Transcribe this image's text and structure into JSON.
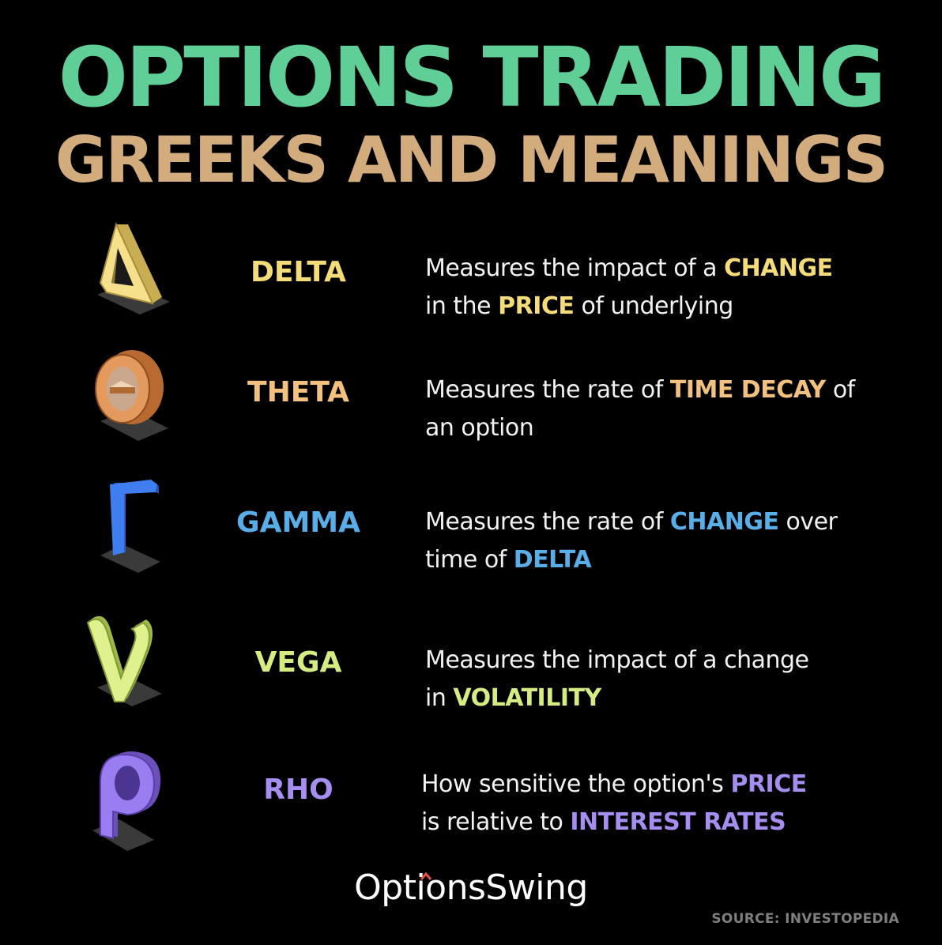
{
  "title": {
    "line1": "OPTIONS TRADING",
    "line2": "GREEKS AND MEANINGS",
    "line1_color": "#5fcf97",
    "line2_color": "#d3ac7d"
  },
  "greeks": [
    {
      "name": "DELTA",
      "color": "#f5dc7a",
      "icon": "delta-icon",
      "line1": [
        {
          "t": "Measures the impact of a "
        },
        {
          "t": "CHANGE",
          "hl": true
        }
      ],
      "line2": [
        {
          "t": "in the "
        },
        {
          "t": "PRICE",
          "hl": true
        },
        {
          "t": " of underlying"
        }
      ]
    },
    {
      "name": "THETA",
      "color": "#f2c07f",
      "icon": "theta-icon",
      "line1": [
        {
          "t": "Measures the rate of "
        },
        {
          "t": "TIME DECAY",
          "hl": true
        },
        {
          "t": " of"
        }
      ],
      "line2": [
        {
          "t": "an option"
        }
      ]
    },
    {
      "name": "GAMMA",
      "color": "#5aaee8",
      "icon": "gamma-icon",
      "line1": [
        {
          "t": "Measures the rate of "
        },
        {
          "t": "CHANGE",
          "hl": true
        },
        {
          "t": " over"
        }
      ],
      "line2": [
        {
          "t": "time of "
        },
        {
          "t": "DELTA",
          "hl": true
        }
      ]
    },
    {
      "name": "VEGA",
      "color": "#d4ec82",
      "icon": "vega-icon",
      "line1": [
        {
          "t": "Measures the impact of a change"
        }
      ],
      "line2": [
        {
          "t": "in "
        },
        {
          "t": "VOLATILITY",
          "hl": true
        }
      ]
    },
    {
      "name": "RHO",
      "color": "#a58ef0",
      "icon": "rho-icon",
      "line1": [
        {
          "t": "How sensitive the option's "
        },
        {
          "t": "PRICE",
          "hl": true
        }
      ],
      "line2": [
        {
          "t": "is relative to "
        },
        {
          "t": "INTEREST RATES",
          "hl": true
        }
      ]
    }
  ],
  "logo": {
    "text": "OptionsSwing",
    "caret_color": "#e8524a"
  },
  "source": {
    "text": "SOURCE: INVESTOPEDIA",
    "color": "#7f7f7f"
  }
}
